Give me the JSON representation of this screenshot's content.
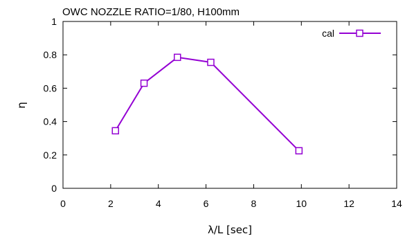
{
  "chart_data": {
    "type": "line",
    "title": "OWC NOZZLE RATIO=1/80, H100mm",
    "xlabel": "λ/L [sec]",
    "ylabel": "η",
    "xlim": [
      0,
      14
    ],
    "ylim": [
      0,
      1
    ],
    "xticks": [
      "0",
      "2",
      "4",
      "6",
      "8",
      "10",
      "12",
      "14"
    ],
    "yticks": [
      "0",
      "0.2",
      "0.4",
      "0.6",
      "0.8",
      "1"
    ],
    "legend_position": "top-right",
    "series": [
      {
        "name": "cal",
        "color": "#9400d3",
        "marker": "open-square",
        "points": [
          {
            "x": 2.2,
            "y": 0.345
          },
          {
            "x": 3.4,
            "y": 0.63
          },
          {
            "x": 4.8,
            "y": 0.785
          },
          {
            "x": 6.2,
            "y": 0.755
          },
          {
            "x": 9.9,
            "y": 0.225
          }
        ]
      }
    ]
  }
}
